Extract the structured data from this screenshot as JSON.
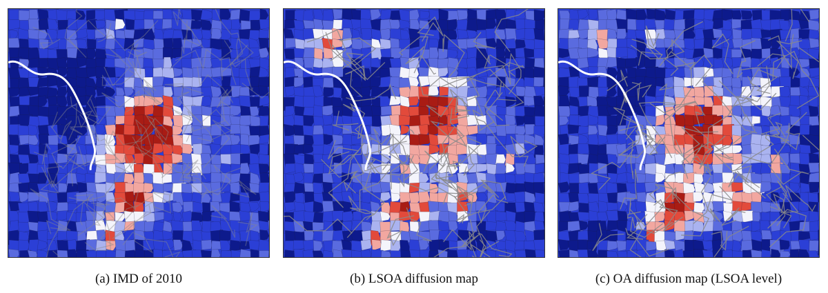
{
  "figure": {
    "panels": [
      {
        "id": "a",
        "caption": "(a) IMD of 2010",
        "variant": 0
      },
      {
        "id": "b",
        "caption": "(b) LSOA diffusion map",
        "variant": 1
      },
      {
        "id": "c",
        "caption": "(c) OA diffusion map (LSOA level)",
        "variant": 2
      }
    ],
    "colors": {
      "deep_blue": "#0d1a8c",
      "blue": "#2b3fd6",
      "mid_blue": "#5a6bdf",
      "light_blue": "#aab3f0",
      "white": "#f4f4fb",
      "light_red": "#f2a7a0",
      "red": "#e24a3b",
      "dark_red": "#a91c14",
      "road": "#8a8a8a",
      "river": "#ffffff",
      "boundary": "#1b1b3a"
    }
  }
}
